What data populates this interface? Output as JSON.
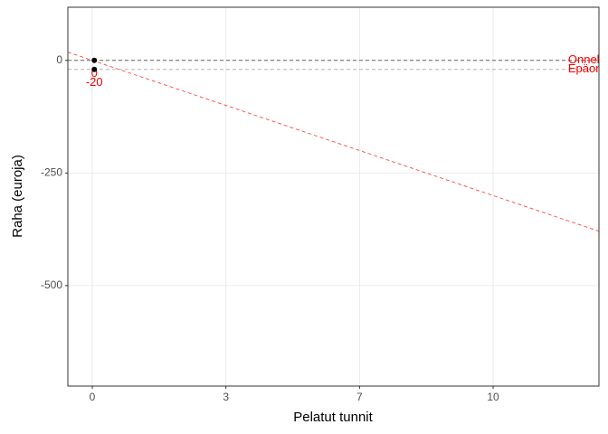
{
  "chart_data": {
    "type": "scatter",
    "x_label": "Pelatut tunnit",
    "y_label": "Raha (euroja)",
    "xlim": [
      -0.61,
      12.64
    ],
    "ylim": [
      -723,
      118
    ],
    "xticks": [
      0,
      {
        "value": 3.333,
        "label": "3"
      },
      {
        "value": 6.667,
        "label": "7"
      },
      10
    ],
    "yticks": [
      0,
      -250,
      -500
    ],
    "grid": true,
    "x": [
      0.05,
      0.05
    ],
    "values": [
      0,
      -20
    ],
    "color": "#000000",
    "label_color": "#ff0000",
    "hlines": [
      {
        "value": 0,
        "color": "#666666"
      },
      {
        "value": -20,
        "color": "#b3b3b3"
      }
    ],
    "ablines": [
      {
        "intercept": 0,
        "slope": -30,
        "color": "#ff5a5a"
      }
    ],
    "annotations": [
      {
        "text": "Onnekas",
        "x": 11.87,
        "y": 0
      },
      {
        "text": "Epäonninen",
        "x": 11.87,
        "y": -20
      }
    ]
  }
}
